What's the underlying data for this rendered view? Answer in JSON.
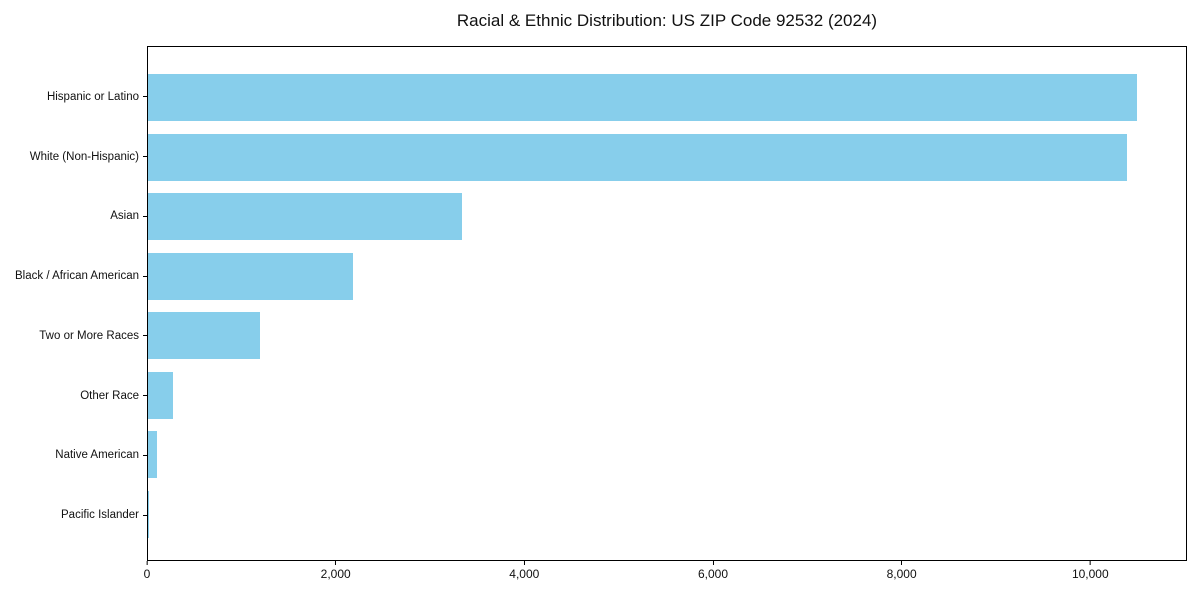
{
  "chart_data": {
    "type": "bar",
    "orientation": "horizontal",
    "title": "Racial & Ethnic Distribution: US ZIP Code 92532 (2024)",
    "categories": [
      "Hispanic or Latino",
      "White (Non-Hispanic)",
      "Asian",
      "Black / African American",
      "Two or More Races",
      "Other Race",
      "Native American",
      "Pacific Islander"
    ],
    "values": [
      10500,
      10400,
      3330,
      2180,
      1190,
      270,
      95,
      10
    ],
    "xlabel": "",
    "ylabel": "",
    "xlim": [
      0,
      11025
    ],
    "xticks": [
      {
        "value": 0,
        "label": "0"
      },
      {
        "value": 2000,
        "label": "2,000"
      },
      {
        "value": 4000,
        "label": "4,000"
      },
      {
        "value": 6000,
        "label": "6,000"
      },
      {
        "value": 8000,
        "label": "8,000"
      },
      {
        "value": 10000,
        "label": "10,000"
      }
    ],
    "bar_color": "#87CEEB",
    "axis_color": "#000000",
    "background_color": "#FFFFFF",
    "grid": false,
    "legend": false
  }
}
